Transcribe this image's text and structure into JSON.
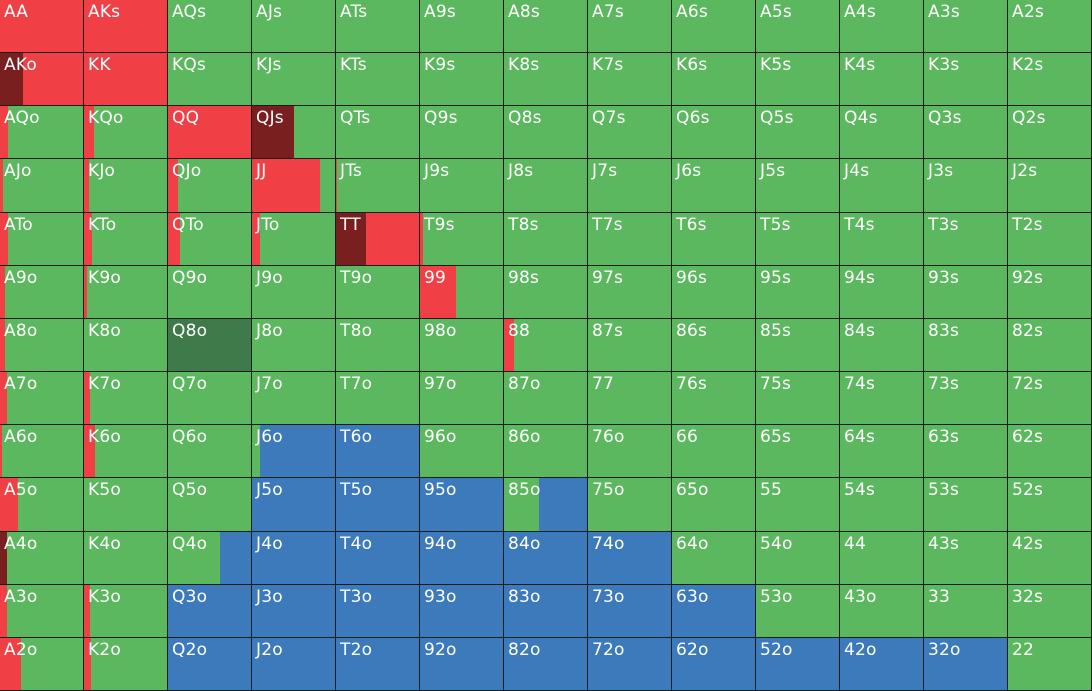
{
  "colors": {
    "fold": "#5cb85f",
    "raise": "#f04045",
    "allin": "#7a1f1f",
    "call": "#3d7abb",
    "check": "#3f7a4a"
  },
  "hands": [
    [
      "AA",
      "AKs",
      "AQs",
      "AJs",
      "ATs",
      "A9s",
      "A8s",
      "A7s",
      "A6s",
      "A5s",
      "A4s",
      "A3s",
      "A2s"
    ],
    [
      "AKo",
      "KK",
      "KQs",
      "KJs",
      "KTs",
      "K9s",
      "K8s",
      "K7s",
      "K6s",
      "K5s",
      "K4s",
      "K3s",
      "K2s"
    ],
    [
      "AQo",
      "KQo",
      "QQ",
      "QJs",
      "QTs",
      "Q9s",
      "Q8s",
      "Q7s",
      "Q6s",
      "Q5s",
      "Q4s",
      "Q3s",
      "Q2s"
    ],
    [
      "AJo",
      "KJo",
      "QJo",
      "JJ",
      "JTs",
      "J9s",
      "J8s",
      "J7s",
      "J6s",
      "J5s",
      "J4s",
      "J3s",
      "J2s"
    ],
    [
      "ATo",
      "KTo",
      "QTo",
      "JTo",
      "TT",
      "T9s",
      "T8s",
      "T7s",
      "T6s",
      "T5s",
      "T4s",
      "T3s",
      "T2s"
    ],
    [
      "A9o",
      "K9o",
      "Q9o",
      "J9o",
      "T9o",
      "99",
      "98s",
      "97s",
      "96s",
      "95s",
      "94s",
      "93s",
      "92s"
    ],
    [
      "A8o",
      "K8o",
      "Q8o",
      "J8o",
      "T8o",
      "98o",
      "88",
      "87s",
      "86s",
      "85s",
      "84s",
      "83s",
      "82s"
    ],
    [
      "A7o",
      "K7o",
      "Q7o",
      "J7o",
      "T7o",
      "97o",
      "87o",
      "77",
      "76s",
      "75s",
      "74s",
      "73s",
      "72s"
    ],
    [
      "A6o",
      "K6o",
      "Q6o",
      "J6o",
      "T6o",
      "96o",
      "86o",
      "76o",
      "66",
      "65s",
      "64s",
      "63s",
      "62s"
    ],
    [
      "A5o",
      "K5o",
      "Q5o",
      "J5o",
      "T5o",
      "95o",
      "85o",
      "75o",
      "65o",
      "55",
      "54s",
      "53s",
      "52s"
    ],
    [
      "A4o",
      "K4o",
      "Q4o",
      "J4o",
      "T4o",
      "94o",
      "84o",
      "74o",
      "64o",
      "54o",
      "44",
      "43s",
      "42s"
    ],
    [
      "A3o",
      "K3o",
      "Q3o",
      "J3o",
      "T3o",
      "93o",
      "83o",
      "73o",
      "63o",
      "53o",
      "43o",
      "33",
      "32s"
    ],
    [
      "A2o",
      "K2o",
      "Q2o",
      "J2o",
      "T2o",
      "92o",
      "82o",
      "72o",
      "62o",
      "52o",
      "42o",
      "32o",
      "22"
    ]
  ],
  "frequencies": {
    "AA": [
      [
        "raise",
        1
      ]
    ],
    "AKs": [
      [
        "raise",
        1
      ]
    ],
    "AKo": [
      [
        "allin",
        0.28
      ],
      [
        "raise",
        0.72
      ]
    ],
    "KK": [
      [
        "raise",
        1
      ]
    ],
    "AQo": [
      [
        "raise",
        0.1
      ],
      [
        "fold",
        0.9
      ]
    ],
    "KQo": [
      [
        "raise",
        0.12
      ],
      [
        "fold",
        0.88
      ]
    ],
    "QQ": [
      [
        "raise",
        1
      ]
    ],
    "QJs": [
      [
        "allin",
        0.5
      ],
      [
        "fold",
        0.5
      ]
    ],
    "AJo": [
      [
        "raise",
        0.04
      ],
      [
        "fold",
        0.96
      ]
    ],
    "KJo": [
      [
        "raise",
        0.06
      ],
      [
        "fold",
        0.94
      ]
    ],
    "QJo": [
      [
        "raise",
        0.12
      ],
      [
        "fold",
        0.88
      ]
    ],
    "JJ": [
      [
        "raise",
        0.82
      ],
      [
        "fold",
        0.18
      ]
    ],
    "JTs": [
      [
        "raise",
        0.01
      ],
      [
        "fold",
        0.99
      ]
    ],
    "ATo": [
      [
        "raise",
        0.1
      ],
      [
        "fold",
        0.9
      ]
    ],
    "KTo": [
      [
        "raise",
        0.1
      ],
      [
        "fold",
        0.9
      ]
    ],
    "QTo": [
      [
        "raise",
        0.15
      ],
      [
        "fold",
        0.85
      ]
    ],
    "JTo": [
      [
        "raise",
        0.1
      ],
      [
        "fold",
        0.9
      ]
    ],
    "TT": [
      [
        "allin",
        0.36
      ],
      [
        "raise",
        0.64
      ]
    ],
    "T9s": [
      [
        "raise",
        0.04
      ],
      [
        "fold",
        0.96
      ]
    ],
    "A9o": [
      [
        "raise",
        0.06
      ],
      [
        "fold",
        0.94
      ]
    ],
    "K9o": [
      [
        "raise",
        0.04
      ],
      [
        "fold",
        0.96
      ]
    ],
    "99": [
      [
        "raise",
        0.43
      ],
      [
        "fold",
        0.57
      ]
    ],
    "A8o": [
      [
        "raise",
        0.06
      ],
      [
        "fold",
        0.94
      ]
    ],
    "Q8o": [
      [
        "check",
        1
      ]
    ],
    "88": [
      [
        "raise",
        0.12
      ],
      [
        "fold",
        0.88
      ]
    ],
    "A7o": [
      [
        "raise",
        0.08
      ],
      [
        "fold",
        0.92
      ]
    ],
    "K7o": [
      [
        "raise",
        0.07
      ],
      [
        "fold",
        0.93
      ]
    ],
    "A6o": [
      [
        "raise",
        0.03
      ],
      [
        "fold",
        0.97
      ]
    ],
    "K6o": [
      [
        "raise",
        0.13
      ],
      [
        "fold",
        0.87
      ]
    ],
    "J6o": [
      [
        "fold",
        0.1
      ],
      [
        "call",
        0.9
      ]
    ],
    "T6o": [
      [
        "call",
        1
      ]
    ],
    "A5o": [
      [
        "raise",
        0.22
      ],
      [
        "fold",
        0.78
      ]
    ],
    "J5o": [
      [
        "call",
        1
      ]
    ],
    "T5o": [
      [
        "call",
        1
      ]
    ],
    "95o": [
      [
        "call",
        1
      ]
    ],
    "85o": [
      [
        "fold",
        0.42
      ],
      [
        "call",
        0.58
      ]
    ],
    "A4o": [
      [
        "allin",
        0.08
      ],
      [
        "fold",
        0.92
      ]
    ],
    "Q4o": [
      [
        "fold",
        0.63
      ],
      [
        "call",
        0.37
      ]
    ],
    "J4o": [
      [
        "call",
        1
      ]
    ],
    "T4o": [
      [
        "call",
        1
      ]
    ],
    "94o": [
      [
        "call",
        1
      ]
    ],
    "84o": [
      [
        "call",
        1
      ]
    ],
    "74o": [
      [
        "call",
        1
      ]
    ],
    "A3o": [
      [
        "raise",
        0.08
      ],
      [
        "fold",
        0.92
      ]
    ],
    "K3o": [
      [
        "raise",
        0.07
      ],
      [
        "fold",
        0.93
      ]
    ],
    "Q3o": [
      [
        "call",
        1
      ]
    ],
    "J3o": [
      [
        "call",
        1
      ]
    ],
    "T3o": [
      [
        "call",
        1
      ]
    ],
    "93o": [
      [
        "call",
        1
      ]
    ],
    "83o": [
      [
        "call",
        1
      ]
    ],
    "73o": [
      [
        "call",
        1
      ]
    ],
    "63o": [
      [
        "call",
        1
      ]
    ],
    "A2o": [
      [
        "raise",
        0.25
      ],
      [
        "fold",
        0.75
      ]
    ],
    "K2o": [
      [
        "raise",
        0.08
      ],
      [
        "fold",
        0.92
      ]
    ],
    "Q2o": [
      [
        "call",
        1
      ]
    ],
    "J2o": [
      [
        "call",
        1
      ]
    ],
    "T2o": [
      [
        "call",
        1
      ]
    ],
    "92o": [
      [
        "call",
        1
      ]
    ],
    "82o": [
      [
        "call",
        1
      ]
    ],
    "72o": [
      [
        "call",
        1
      ]
    ],
    "62o": [
      [
        "call",
        1
      ]
    ],
    "52o": [
      [
        "call",
        1
      ]
    ],
    "42o": [
      [
        "call",
        1
      ]
    ],
    "32o": [
      [
        "call",
        1
      ]
    ]
  }
}
